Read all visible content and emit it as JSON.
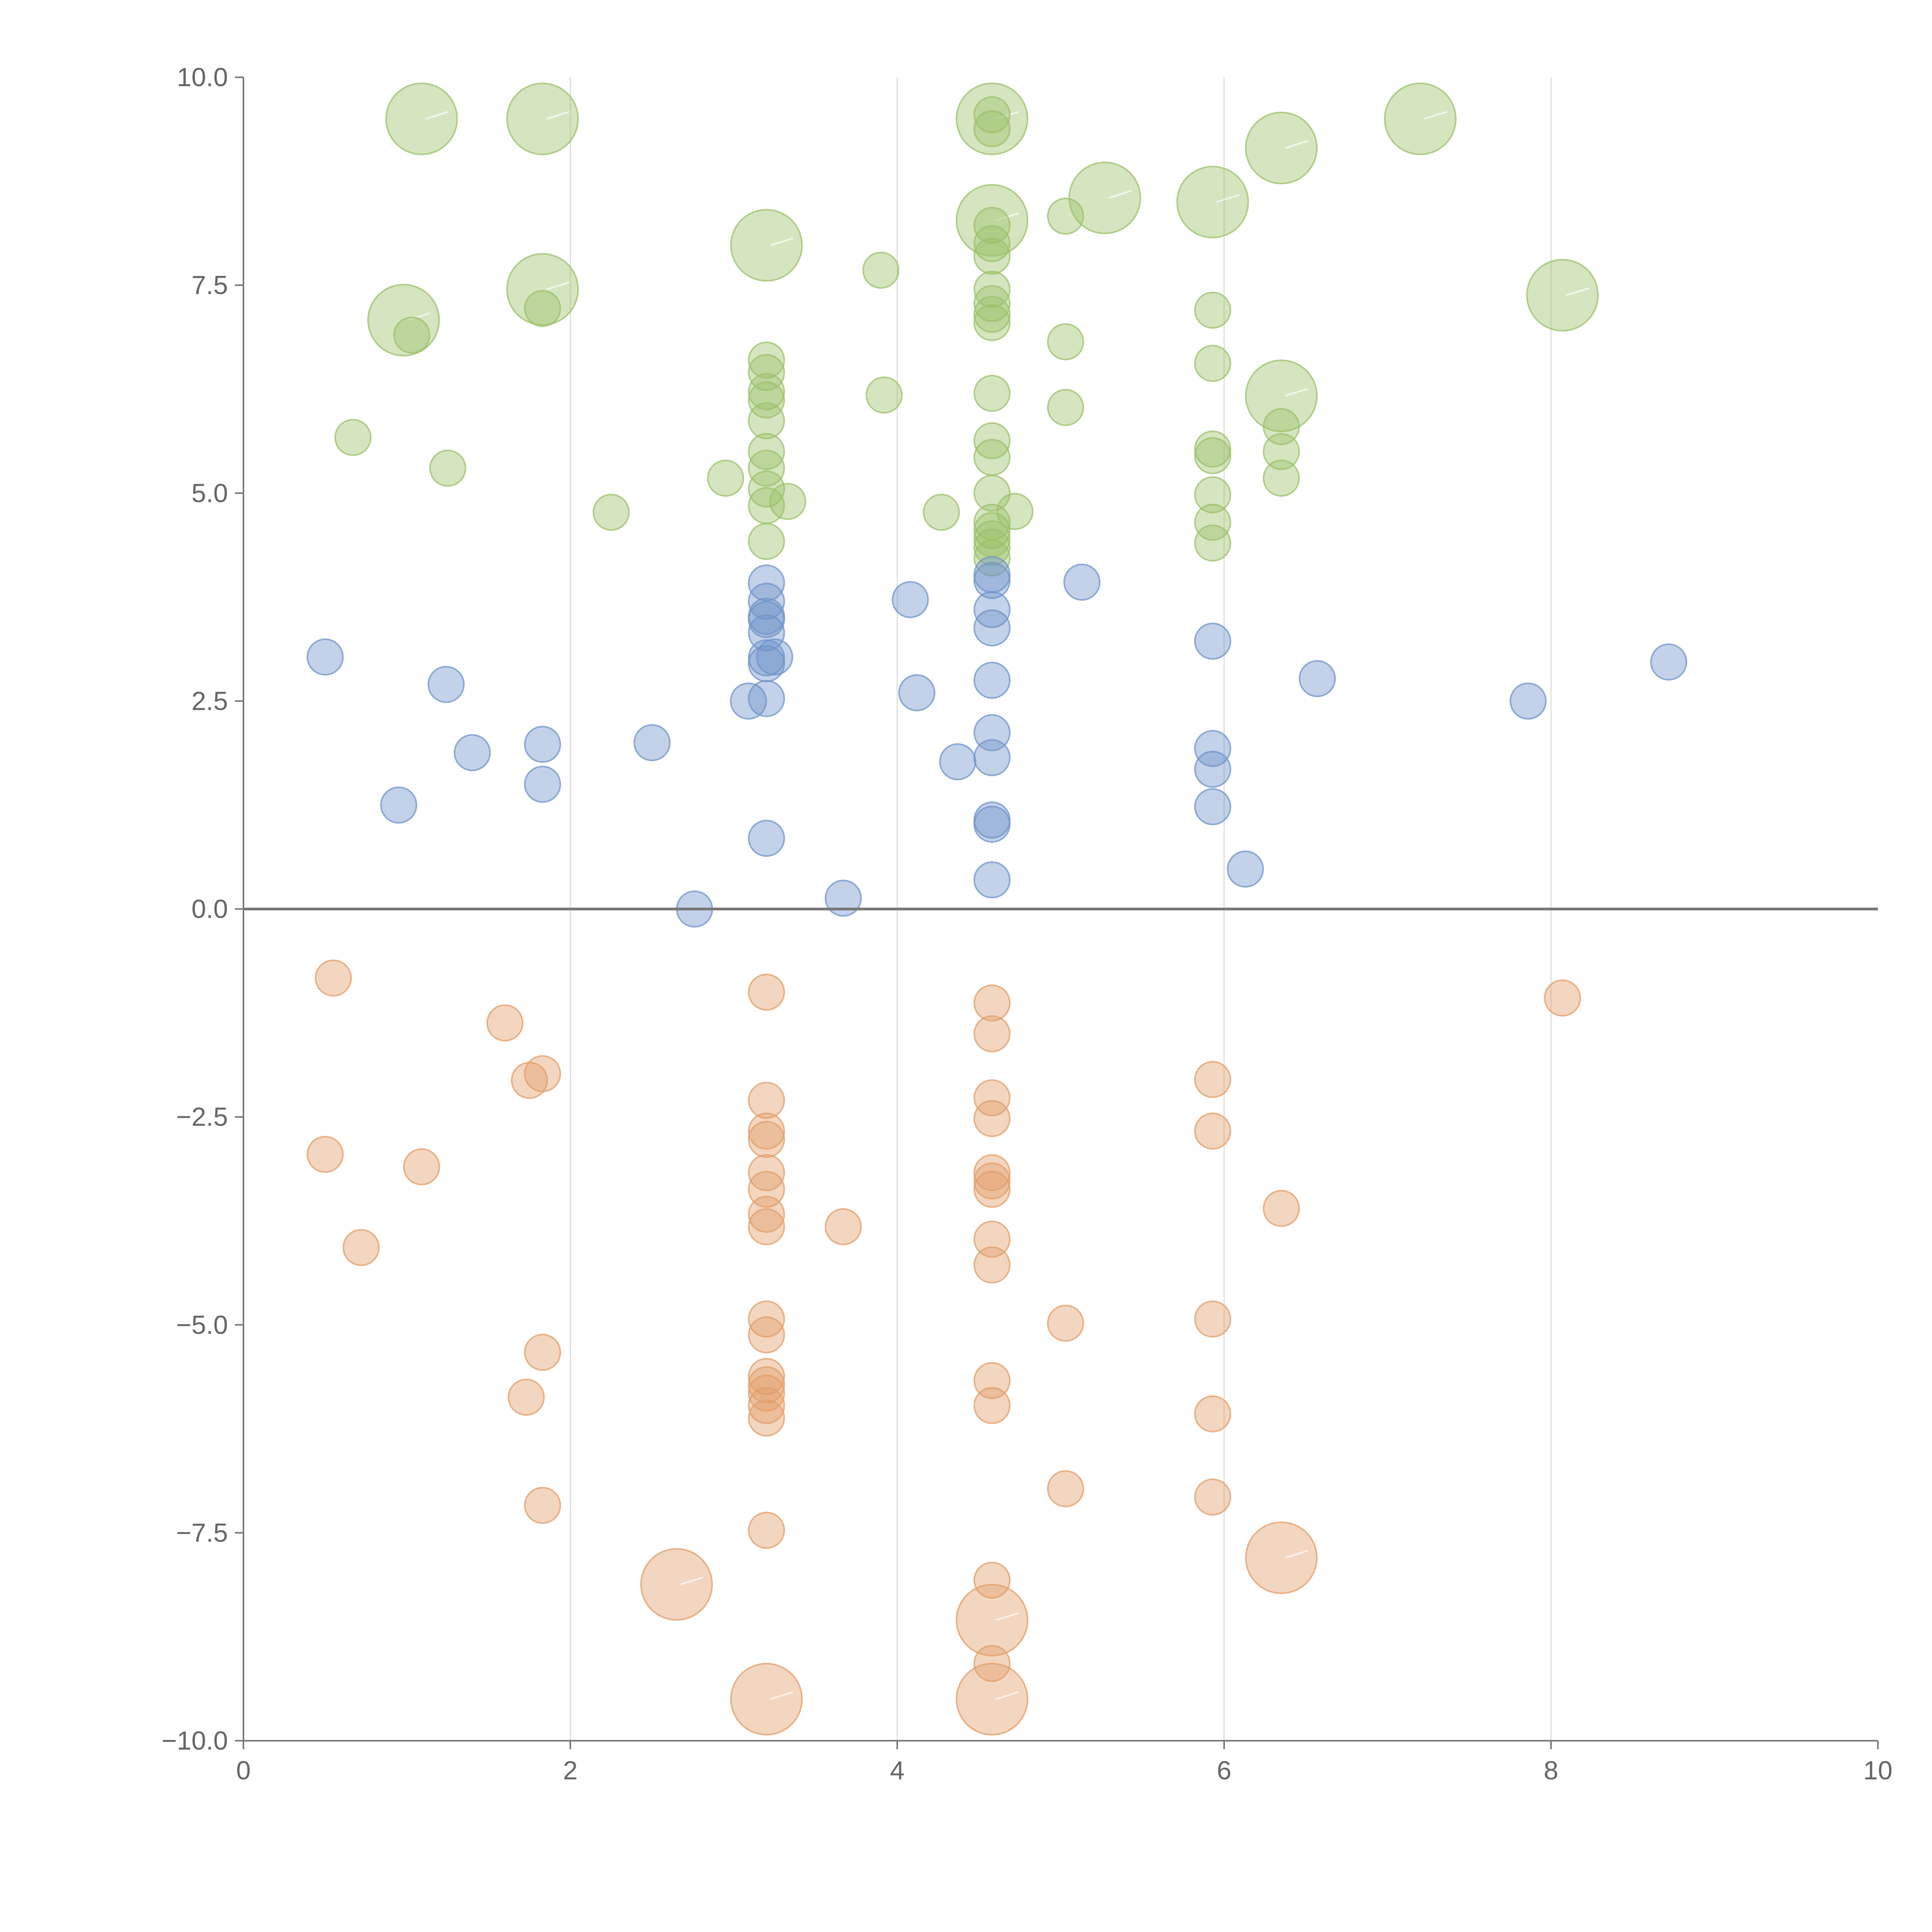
{
  "chart_data": {
    "type": "scatter",
    "variant": "bubble",
    "title": "",
    "xlabel": "",
    "ylabel": "",
    "xlim": [
      0,
      10
    ],
    "ylim": [
      -10,
      10
    ],
    "x_ticks": [
      0,
      2,
      4,
      6,
      8,
      10
    ],
    "x_tick_labels": [
      "0",
      "2",
      "4",
      "6",
      "8",
      "10"
    ],
    "y_ticks": [
      10,
      7.5,
      5,
      2.5,
      0,
      -2.5,
      -5,
      -7.5,
      -10
    ],
    "y_tick_labels": [
      "10.0",
      "7.5",
      "5.0",
      "2.5",
      "0.0",
      "−2.5",
      "−5.0",
      "−7.5",
      "−10.0"
    ],
    "vertical_gridlines": [
      2,
      4,
      6,
      8
    ],
    "reference_line_y": 0,
    "colors": {
      "green": "#9cc06a",
      "blue": "#6f93c9",
      "orange": "#e39d68"
    },
    "series": [
      {
        "name": "green",
        "color": "#9cc06a",
        "points": [
          {
            "x": 1.09,
            "y": 9.5,
            "size": "large"
          },
          {
            "x": 1.83,
            "y": 9.5,
            "size": "large"
          },
          {
            "x": 4.58,
            "y": 9.5,
            "size": "large"
          },
          {
            "x": 7.2,
            "y": 9.5,
            "size": "large"
          },
          {
            "x": 6.35,
            "y": 9.15,
            "size": "large"
          },
          {
            "x": 5.27,
            "y": 8.55,
            "size": "large"
          },
          {
            "x": 5.93,
            "y": 8.5,
            "size": "large"
          },
          {
            "x": 4.58,
            "y": 8.28,
            "size": "large"
          },
          {
            "x": 3.2,
            "y": 7.98,
            "size": "large"
          },
          {
            "x": 8.07,
            "y": 7.38,
            "size": "large"
          },
          {
            "x": 1.83,
            "y": 7.45,
            "size": "large"
          },
          {
            "x": 0.98,
            "y": 7.08,
            "size": "large"
          },
          {
            "x": 6.35,
            "y": 6.17,
            "size": "large"
          },
          {
            "x": 4.58,
            "y": 9.55,
            "size": "small"
          },
          {
            "x": 4.58,
            "y": 9.38,
            "size": "small"
          },
          {
            "x": 5.03,
            "y": 8.33,
            "size": "small"
          },
          {
            "x": 4.58,
            "y": 8.22,
            "size": "small"
          },
          {
            "x": 4.58,
            "y": 8.0,
            "size": "small"
          },
          {
            "x": 4.58,
            "y": 7.85,
            "size": "small"
          },
          {
            "x": 3.9,
            "y": 7.68,
            "size": "small"
          },
          {
            "x": 4.58,
            "y": 7.45,
            "size": "small"
          },
          {
            "x": 4.58,
            "y": 7.28,
            "size": "small"
          },
          {
            "x": 4.58,
            "y": 7.15,
            "size": "small"
          },
          {
            "x": 4.58,
            "y": 7.05,
            "size": "small"
          },
          {
            "x": 1.83,
            "y": 7.22,
            "size": "small"
          },
          {
            "x": 5.93,
            "y": 7.2,
            "size": "small"
          },
          {
            "x": 1.03,
            "y": 6.9,
            "size": "small"
          },
          {
            "x": 5.03,
            "y": 6.82,
            "size": "small"
          },
          {
            "x": 3.2,
            "y": 6.6,
            "size": "small"
          },
          {
            "x": 5.93,
            "y": 6.56,
            "size": "small"
          },
          {
            "x": 3.2,
            "y": 6.45,
            "size": "small"
          },
          {
            "x": 3.2,
            "y": 6.22,
            "size": "small"
          },
          {
            "x": 3.2,
            "y": 6.12,
            "size": "small"
          },
          {
            "x": 3.92,
            "y": 6.18,
            "size": "small"
          },
          {
            "x": 4.58,
            "y": 6.2,
            "size": "small"
          },
          {
            "x": 5.03,
            "y": 6.03,
            "size": "small"
          },
          {
            "x": 3.2,
            "y": 5.87,
            "size": "small"
          },
          {
            "x": 6.35,
            "y": 5.8,
            "size": "small"
          },
          {
            "x": 0.67,
            "y": 5.67,
            "size": "small"
          },
          {
            "x": 4.58,
            "y": 5.63,
            "size": "small"
          },
          {
            "x": 3.2,
            "y": 5.5,
            "size": "small"
          },
          {
            "x": 5.93,
            "y": 5.53,
            "size": "small"
          },
          {
            "x": 5.93,
            "y": 5.45,
            "size": "small"
          },
          {
            "x": 6.35,
            "y": 5.5,
            "size": "small"
          },
          {
            "x": 4.58,
            "y": 5.43,
            "size": "small"
          },
          {
            "x": 1.25,
            "y": 5.3,
            "size": "small"
          },
          {
            "x": 3.2,
            "y": 5.3,
            "size": "small"
          },
          {
            "x": 2.95,
            "y": 5.18,
            "size": "small"
          },
          {
            "x": 6.35,
            "y": 5.18,
            "size": "small"
          },
          {
            "x": 3.2,
            "y": 5.05,
            "size": "small"
          },
          {
            "x": 4.58,
            "y": 5.0,
            "size": "small"
          },
          {
            "x": 5.93,
            "y": 4.98,
            "size": "small"
          },
          {
            "x": 3.2,
            "y": 4.85,
            "size": "small"
          },
          {
            "x": 3.33,
            "y": 4.9,
            "size": "small"
          },
          {
            "x": 2.25,
            "y": 4.77,
            "size": "small"
          },
          {
            "x": 4.27,
            "y": 4.77,
            "size": "small"
          },
          {
            "x": 4.72,
            "y": 4.78,
            "size": "small"
          },
          {
            "x": 4.58,
            "y": 4.65,
            "size": "small"
          },
          {
            "x": 4.58,
            "y": 4.55,
            "size": "small"
          },
          {
            "x": 5.93,
            "y": 4.65,
            "size": "small"
          },
          {
            "x": 4.58,
            "y": 4.45,
            "size": "small"
          },
          {
            "x": 3.2,
            "y": 4.42,
            "size": "small"
          },
          {
            "x": 4.58,
            "y": 4.35,
            "size": "small"
          },
          {
            "x": 5.93,
            "y": 4.4,
            "size": "small"
          },
          {
            "x": 4.58,
            "y": 4.22,
            "size": "small"
          }
        ]
      },
      {
        "name": "blue",
        "color": "#6f93c9",
        "points": [
          {
            "x": 4.58,
            "y": 4.02,
            "size": "small"
          },
          {
            "x": 3.2,
            "y": 3.92,
            "size": "small"
          },
          {
            "x": 5.13,
            "y": 3.93,
            "size": "small"
          },
          {
            "x": 4.58,
            "y": 3.95,
            "size": "small"
          },
          {
            "x": 4.08,
            "y": 3.72,
            "size": "small"
          },
          {
            "x": 3.2,
            "y": 3.7,
            "size": "small"
          },
          {
            "x": 4.58,
            "y": 3.6,
            "size": "small"
          },
          {
            "x": 3.2,
            "y": 3.52,
            "size": "small"
          },
          {
            "x": 3.2,
            "y": 3.48,
            "size": "small"
          },
          {
            "x": 4.58,
            "y": 3.38,
            "size": "small"
          },
          {
            "x": 3.2,
            "y": 3.32,
            "size": "small"
          },
          {
            "x": 5.93,
            "y": 3.22,
            "size": "small"
          },
          {
            "x": 0.5,
            "y": 3.03,
            "size": "small"
          },
          {
            "x": 3.2,
            "y": 3.02,
            "size": "small"
          },
          {
            "x": 3.25,
            "y": 3.03,
            "size": "small"
          },
          {
            "x": 3.2,
            "y": 2.95,
            "size": "small"
          },
          {
            "x": 8.72,
            "y": 2.97,
            "size": "small"
          },
          {
            "x": 6.57,
            "y": 2.77,
            "size": "small"
          },
          {
            "x": 4.58,
            "y": 2.75,
            "size": "small"
          },
          {
            "x": 1.24,
            "y": 2.7,
            "size": "small"
          },
          {
            "x": 4.12,
            "y": 2.6,
            "size": "small"
          },
          {
            "x": 3.09,
            "y": 2.5,
            "size": "small"
          },
          {
            "x": 3.2,
            "y": 2.53,
            "size": "small"
          },
          {
            "x": 7.86,
            "y": 2.5,
            "size": "small"
          },
          {
            "x": 4.58,
            "y": 2.12,
            "size": "small"
          },
          {
            "x": 1.83,
            "y": 1.98,
            "size": "small"
          },
          {
            "x": 2.5,
            "y": 2.0,
            "size": "small"
          },
          {
            "x": 5.93,
            "y": 1.93,
            "size": "small"
          },
          {
            "x": 1.4,
            "y": 1.88,
            "size": "small"
          },
          {
            "x": 4.58,
            "y": 1.82,
            "size": "small"
          },
          {
            "x": 4.37,
            "y": 1.77,
            "size": "small"
          },
          {
            "x": 5.93,
            "y": 1.68,
            "size": "small"
          },
          {
            "x": 1.83,
            "y": 1.5,
            "size": "small"
          },
          {
            "x": 0.95,
            "y": 1.25,
            "size": "small"
          },
          {
            "x": 5.93,
            "y": 1.23,
            "size": "small"
          },
          {
            "x": 4.58,
            "y": 1.07,
            "size": "small"
          },
          {
            "x": 4.58,
            "y": 1.02,
            "size": "small"
          },
          {
            "x": 3.2,
            "y": 0.85,
            "size": "small"
          },
          {
            "x": 6.13,
            "y": 0.48,
            "size": "small"
          },
          {
            "x": 4.58,
            "y": 0.35,
            "size": "small"
          },
          {
            "x": 3.67,
            "y": 0.13,
            "size": "small"
          },
          {
            "x": 2.76,
            "y": 0.0,
            "size": "small"
          }
        ]
      },
      {
        "name": "orange",
        "color": "#e39d68",
        "points": [
          {
            "x": 0.55,
            "y": -0.83,
            "size": "small"
          },
          {
            "x": 3.2,
            "y": -1.0,
            "size": "small"
          },
          {
            "x": 8.07,
            "y": -1.07,
            "size": "small"
          },
          {
            "x": 4.58,
            "y": -1.13,
            "size": "small"
          },
          {
            "x": 1.6,
            "y": -1.37,
            "size": "small"
          },
          {
            "x": 4.58,
            "y": -1.5,
            "size": "small"
          },
          {
            "x": 1.83,
            "y": -1.98,
            "size": "small"
          },
          {
            "x": 1.75,
            "y": -2.06,
            "size": "small"
          },
          {
            "x": 5.93,
            "y": -2.05,
            "size": "small"
          },
          {
            "x": 3.2,
            "y": -2.3,
            "size": "small"
          },
          {
            "x": 4.58,
            "y": -2.27,
            "size": "small"
          },
          {
            "x": 4.58,
            "y": -2.52,
            "size": "small"
          },
          {
            "x": 5.93,
            "y": -2.67,
            "size": "small"
          },
          {
            "x": 3.2,
            "y": -2.67,
            "size": "small"
          },
          {
            "x": 3.2,
            "y": -2.77,
            "size": "small"
          },
          {
            "x": 0.5,
            "y": -2.95,
            "size": "small"
          },
          {
            "x": 1.09,
            "y": -3.1,
            "size": "small"
          },
          {
            "x": 3.2,
            "y": -3.17,
            "size": "small"
          },
          {
            "x": 4.58,
            "y": -3.17,
            "size": "small"
          },
          {
            "x": 4.58,
            "y": -3.27,
            "size": "small"
          },
          {
            "x": 4.58,
            "y": -3.37,
            "size": "small"
          },
          {
            "x": 3.2,
            "y": -3.37,
            "size": "small"
          },
          {
            "x": 6.35,
            "y": -3.6,
            "size": "small"
          },
          {
            "x": 3.2,
            "y": -3.67,
            "size": "small"
          },
          {
            "x": 3.2,
            "y": -3.82,
            "size": "small"
          },
          {
            "x": 3.67,
            "y": -3.82,
            "size": "small"
          },
          {
            "x": 4.58,
            "y": -3.97,
            "size": "small"
          },
          {
            "x": 0.72,
            "y": -4.07,
            "size": "small"
          },
          {
            "x": 4.58,
            "y": -4.28,
            "size": "small"
          },
          {
            "x": 3.2,
            "y": -4.93,
            "size": "small"
          },
          {
            "x": 5.93,
            "y": -4.93,
            "size": "small"
          },
          {
            "x": 5.03,
            "y": -4.98,
            "size": "small"
          },
          {
            "x": 3.2,
            "y": -5.12,
            "size": "small"
          },
          {
            "x": 1.83,
            "y": -5.33,
            "size": "small"
          },
          {
            "x": 3.2,
            "y": -5.62,
            "size": "small"
          },
          {
            "x": 3.2,
            "y": -5.72,
            "size": "small"
          },
          {
            "x": 4.58,
            "y": -5.67,
            "size": "small"
          },
          {
            "x": 3.2,
            "y": -5.82,
            "size": "small"
          },
          {
            "x": 1.73,
            "y": -5.87,
            "size": "small"
          },
          {
            "x": 4.58,
            "y": -5.97,
            "size": "small"
          },
          {
            "x": 3.2,
            "y": -5.97,
            "size": "small"
          },
          {
            "x": 3.2,
            "y": -6.12,
            "size": "small"
          },
          {
            "x": 5.93,
            "y": -6.07,
            "size": "small"
          },
          {
            "x": 5.03,
            "y": -6.97,
            "size": "small"
          },
          {
            "x": 5.93,
            "y": -7.07,
            "size": "small"
          },
          {
            "x": 1.83,
            "y": -7.17,
            "size": "small"
          },
          {
            "x": 3.2,
            "y": -7.47,
            "size": "small"
          },
          {
            "x": 4.58,
            "y": -8.07,
            "size": "small"
          },
          {
            "x": 4.58,
            "y": -9.07,
            "size": "small"
          },
          {
            "x": 6.35,
            "y": -7.8,
            "size": "large"
          },
          {
            "x": 2.65,
            "y": -8.12,
            "size": "large"
          },
          {
            "x": 4.58,
            "y": -8.55,
            "size": "large"
          },
          {
            "x": 3.2,
            "y": -9.5,
            "size": "large"
          },
          {
            "x": 4.58,
            "y": -9.5,
            "size": "large"
          }
        ]
      }
    ]
  }
}
